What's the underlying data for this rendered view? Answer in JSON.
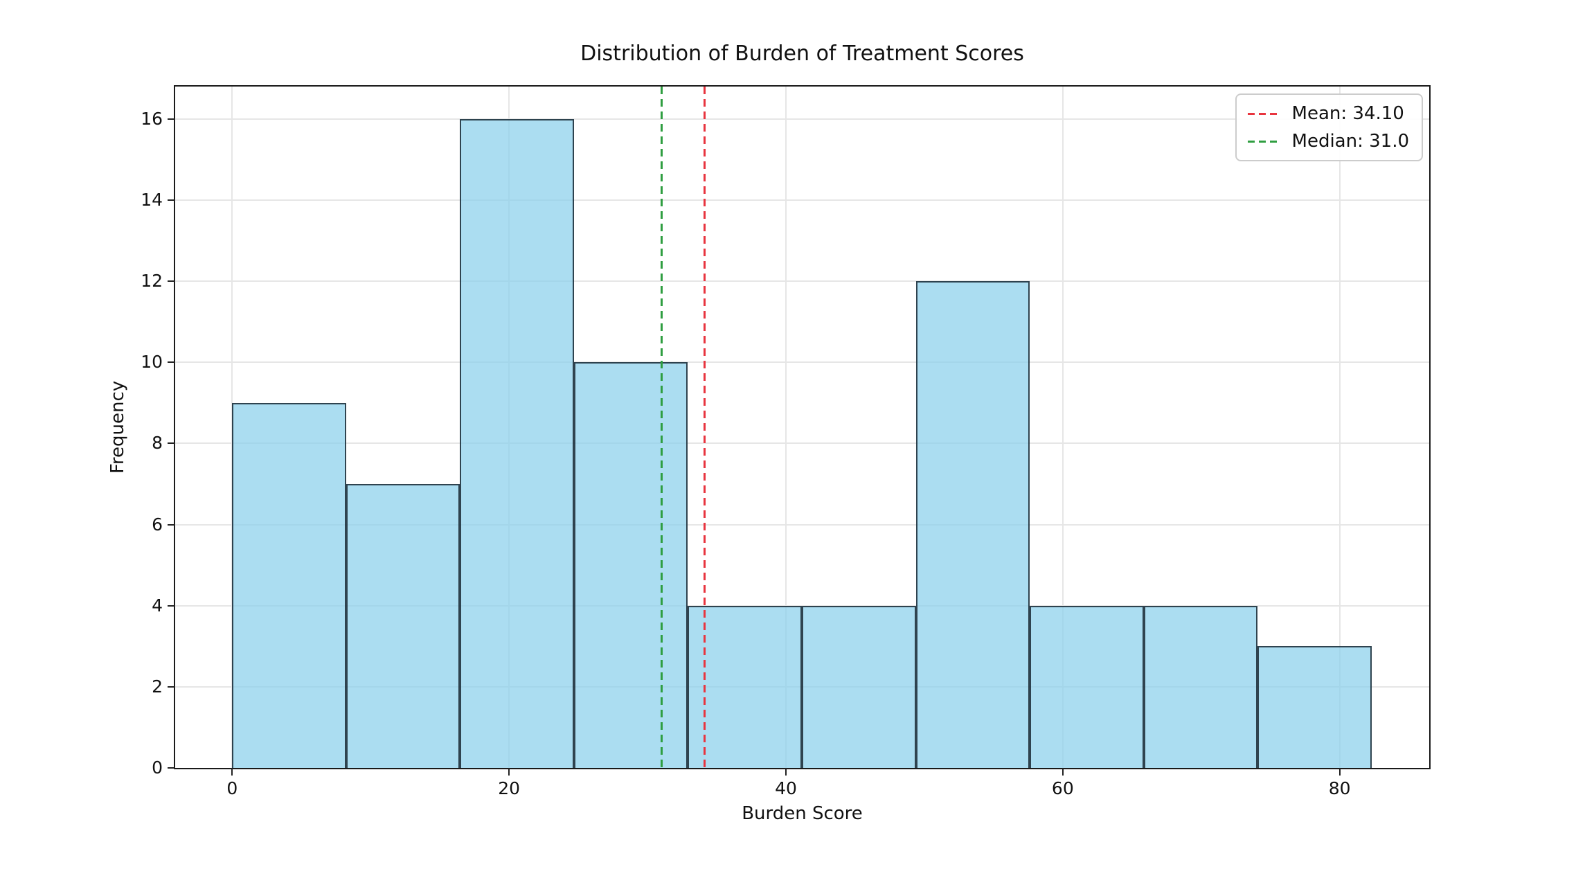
{
  "figure": {
    "title": "Distribution of Burden of Treatment Scores",
    "xlabel": "Burden Score",
    "ylabel": "Frequency"
  },
  "legend": {
    "items": [
      {
        "label": "Mean: 34.10",
        "color": "#e8353f",
        "style": "dashed"
      },
      {
        "label": "Median: 31.0",
        "color": "#2f9e41",
        "style": "dashed"
      }
    ]
  },
  "chart_data": {
    "type": "bar",
    "subtype": "histogram",
    "title": "Distribution of Burden of Treatment Scores",
    "xlabel": "Burden Score",
    "ylabel": "Frequency",
    "bin_edges": [
      0,
      8.23,
      16.46,
      24.69,
      32.92,
      41.15,
      49.38,
      57.61,
      65.84,
      74.07,
      82.3
    ],
    "frequencies": [
      9,
      7,
      16,
      10,
      4,
      4,
      12,
      4,
      4,
      3
    ],
    "mean": 34.1,
    "median": 31.0,
    "xticks": [
      0,
      20,
      40,
      60,
      80
    ],
    "yticks": [
      0,
      2,
      4,
      6,
      8,
      10,
      12,
      14,
      16
    ],
    "xlim": [
      -4.12,
      86.47
    ],
    "ylim": [
      0,
      16.8
    ],
    "grid": true,
    "legend_position": "upper right",
    "bar_fill": "#87CEEB",
    "bar_fill_alpha": 0.7,
    "bar_edge": "#1a2832",
    "mean_line_color": "#e8353f",
    "median_line_color": "#2f9e41"
  }
}
